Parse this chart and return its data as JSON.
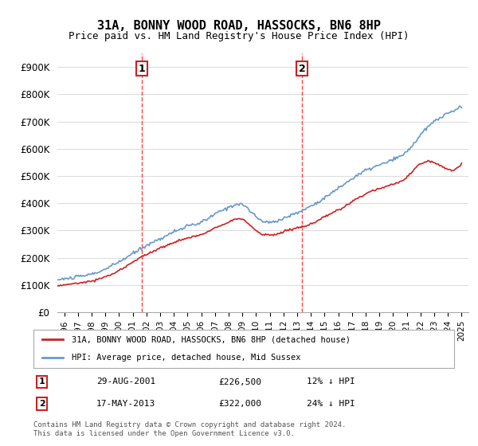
{
  "title": "31A, BONNY WOOD ROAD, HASSOCKS, BN6 8HP",
  "subtitle": "Price paid vs. HM Land Registry's House Price Index (HPI)",
  "ylabel_ticks": [
    "£0",
    "£100K",
    "£200K",
    "£300K",
    "£400K",
    "£500K",
    "£600K",
    "£700K",
    "£800K",
    "£900K"
  ],
  "ytick_values": [
    0,
    100000,
    200000,
    300000,
    400000,
    500000,
    600000,
    700000,
    800000,
    900000
  ],
  "ylim": [
    0,
    950000
  ],
  "xlim_start": 1995.5,
  "xlim_end": 2025.5,
  "hpi_color": "#6699cc",
  "price_color": "#cc2222",
  "dashed_line_color": "#ff4444",
  "transaction1_year": 2001.65,
  "transaction1_price": 226500,
  "transaction2_year": 2013.37,
  "transaction2_price": 322000,
  "legend_label1": "31A, BONNY WOOD ROAD, HASSOCKS, BN6 8HP (detached house)",
  "legend_label2": "HPI: Average price, detached house, Mid Sussex",
  "annotation1_label": "1",
  "annotation2_label": "2",
  "table_row1": [
    "1",
    "29-AUG-2001",
    "£226,500",
    "12% ↓ HPI"
  ],
  "table_row2": [
    "2",
    "17-MAY-2013",
    "£322,000",
    "24% ↓ HPI"
  ],
  "footer": "Contains HM Land Registry data © Crown copyright and database right 2024.\nThis data is licensed under the Open Government Licence v3.0.",
  "background_color": "#ffffff",
  "grid_color": "#dddddd"
}
